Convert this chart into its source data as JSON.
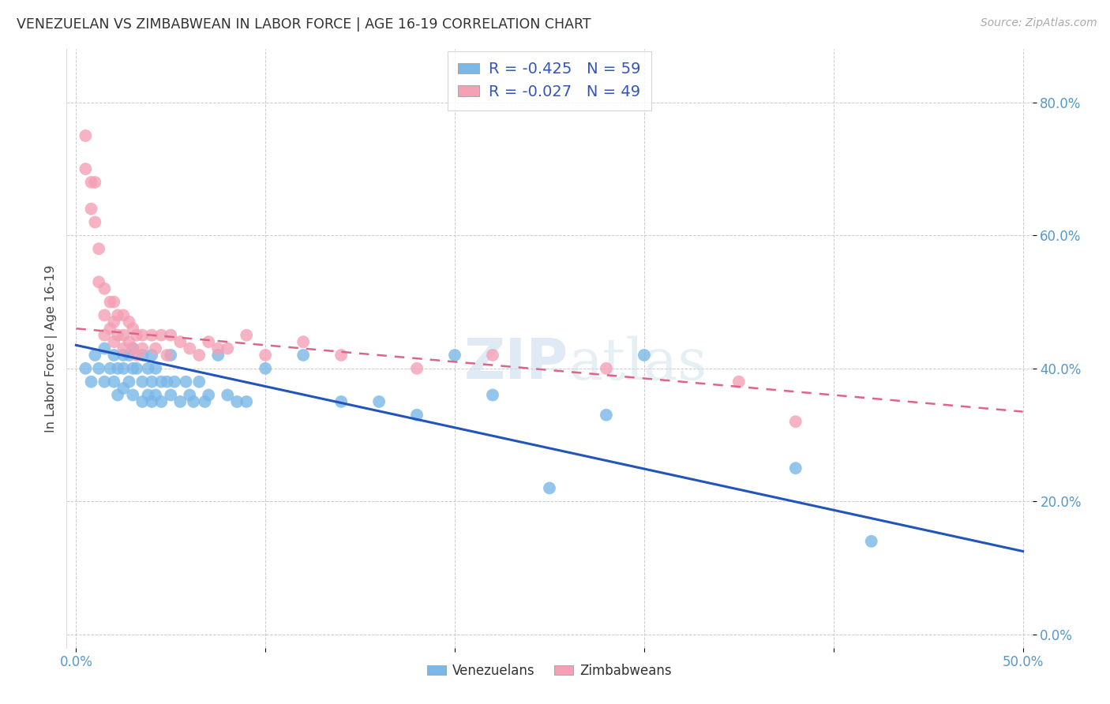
{
  "title": "VENEZUELAN VS ZIMBABWEAN IN LABOR FORCE | AGE 16-19 CORRELATION CHART",
  "source": "Source: ZipAtlas.com",
  "ylabel": "In Labor Force | Age 16-19",
  "xlim": [
    -0.005,
    0.505
  ],
  "ylim": [
    -0.02,
    0.88
  ],
  "xticks": [
    0.0,
    0.1,
    0.2,
    0.3,
    0.4,
    0.5
  ],
  "yticks": [
    0.0,
    0.2,
    0.4,
    0.6,
    0.8
  ],
  "xtick_labels": [
    "0.0%",
    "",
    "",
    "",
    "",
    "50.0%"
  ],
  "ytick_labels_right": [
    "0.0%",
    "20.0%",
    "40.0%",
    "60.0%",
    "80.0%"
  ],
  "venezuelan_color": "#7ab8e8",
  "zimbabwean_color": "#f4a0b5",
  "venezuelan_line_color": "#2255bb",
  "zimbabwean_line_color": "#dd6688",
  "R_venezuelan": -0.425,
  "N_venezuelan": 59,
  "R_zimbabwean": -0.027,
  "N_zimbabwean": 49,
  "venezuelan_x": [
    0.005,
    0.008,
    0.01,
    0.012,
    0.015,
    0.015,
    0.018,
    0.02,
    0.02,
    0.022,
    0.022,
    0.025,
    0.025,
    0.025,
    0.028,
    0.028,
    0.03,
    0.03,
    0.03,
    0.032,
    0.035,
    0.035,
    0.035,
    0.038,
    0.038,
    0.04,
    0.04,
    0.04,
    0.042,
    0.042,
    0.045,
    0.045,
    0.048,
    0.05,
    0.05,
    0.052,
    0.055,
    0.058,
    0.06,
    0.062,
    0.065,
    0.068,
    0.07,
    0.075,
    0.08,
    0.085,
    0.09,
    0.1,
    0.12,
    0.14,
    0.16,
    0.18,
    0.2,
    0.22,
    0.25,
    0.28,
    0.3,
    0.38,
    0.42
  ],
  "venezuelan_y": [
    0.4,
    0.38,
    0.42,
    0.4,
    0.43,
    0.38,
    0.4,
    0.42,
    0.38,
    0.4,
    0.36,
    0.42,
    0.4,
    0.37,
    0.42,
    0.38,
    0.43,
    0.4,
    0.36,
    0.4,
    0.42,
    0.38,
    0.35,
    0.4,
    0.36,
    0.42,
    0.38,
    0.35,
    0.4,
    0.36,
    0.38,
    0.35,
    0.38,
    0.42,
    0.36,
    0.38,
    0.35,
    0.38,
    0.36,
    0.35,
    0.38,
    0.35,
    0.36,
    0.42,
    0.36,
    0.35,
    0.35,
    0.4,
    0.42,
    0.35,
    0.35,
    0.33,
    0.42,
    0.36,
    0.22,
    0.33,
    0.42,
    0.25,
    0.14
  ],
  "zimbabwean_x": [
    0.005,
    0.005,
    0.008,
    0.008,
    0.01,
    0.01,
    0.012,
    0.012,
    0.015,
    0.015,
    0.015,
    0.018,
    0.018,
    0.02,
    0.02,
    0.02,
    0.022,
    0.022,
    0.025,
    0.025,
    0.025,
    0.028,
    0.028,
    0.03,
    0.03,
    0.032,
    0.032,
    0.035,
    0.035,
    0.04,
    0.042,
    0.045,
    0.048,
    0.05,
    0.055,
    0.06,
    0.065,
    0.07,
    0.075,
    0.08,
    0.09,
    0.1,
    0.12,
    0.14,
    0.18,
    0.22,
    0.28,
    0.35,
    0.38
  ],
  "zimbabwean_y": [
    0.75,
    0.7,
    0.68,
    0.64,
    0.68,
    0.62,
    0.58,
    0.53,
    0.52,
    0.48,
    0.45,
    0.5,
    0.46,
    0.5,
    0.47,
    0.44,
    0.48,
    0.45,
    0.48,
    0.45,
    0.43,
    0.47,
    0.44,
    0.46,
    0.43,
    0.45,
    0.42,
    0.45,
    0.43,
    0.45,
    0.43,
    0.45,
    0.42,
    0.45,
    0.44,
    0.43,
    0.42,
    0.44,
    0.43,
    0.43,
    0.45,
    0.42,
    0.44,
    0.42,
    0.4,
    0.42,
    0.4,
    0.38,
    0.32
  ],
  "watermark_zip": "ZIP",
  "watermark_atlas": "atlas",
  "background_color": "#ffffff",
  "grid_color": "#cccccc"
}
